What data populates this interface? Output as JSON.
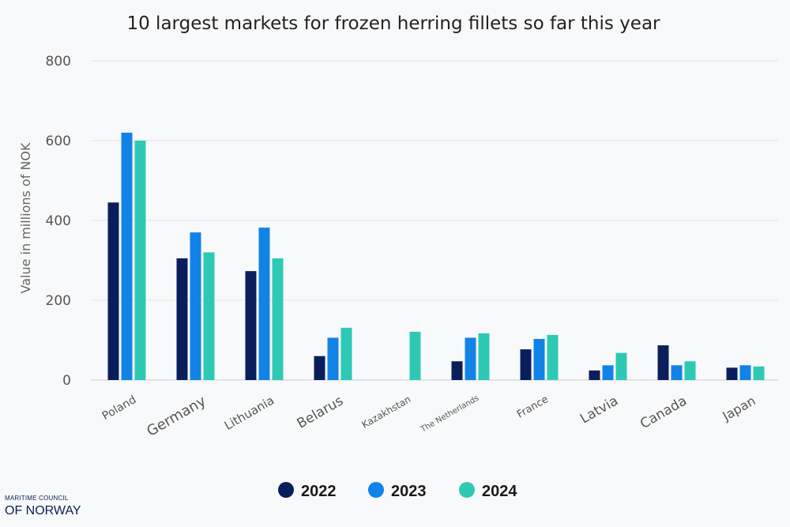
{
  "chart_data": {
    "type": "bar",
    "title": "10 largest markets for frozen herring fillets so far this year",
    "ylabel": "Value in millions of NOK",
    "xlabel": "",
    "ylim": [
      0,
      800
    ],
    "yticks": [
      0,
      200,
      400,
      600,
      800
    ],
    "grid": true,
    "legend_position": "bottom-center",
    "categories": [
      "Poland",
      "Germany",
      "Lithuania",
      "Belarus",
      "Kazakhstan",
      "The Netherlands",
      "France",
      "Latvia",
      "Canada",
      "Japan"
    ],
    "series": [
      {
        "name": "2022",
        "color": "#0b1e5c",
        "values": [
          445,
          305,
          273,
          60,
          0,
          47,
          77,
          24,
          87,
          31
        ]
      },
      {
        "name": "2023",
        "color": "#1283e6",
        "values": [
          620,
          370,
          382,
          106,
          0,
          106,
          103,
          37,
          37,
          37
        ]
      },
      {
        "name": "2024",
        "color": "#2ec9b4",
        "values": [
          600,
          320,
          305,
          131,
          121,
          117,
          113,
          68,
          47,
          34
        ]
      }
    ]
  },
  "logo": {
    "line1": "MARITIME COUNCIL",
    "line2": "OF NORWAY"
  }
}
